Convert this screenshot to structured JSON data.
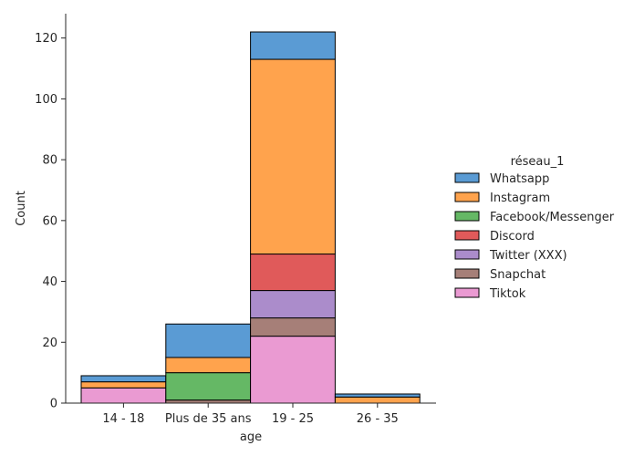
{
  "chart_data": {
    "type": "bar",
    "stacked": true,
    "xlabel": "age",
    "ylabel": "Count",
    "ylim": [
      0,
      128
    ],
    "yticks": [
      0,
      20,
      40,
      60,
      80,
      100,
      120
    ],
    "categories": [
      "14 - 18",
      "Plus de 35 ans",
      "19 - 25",
      "26 - 35"
    ],
    "legend": {
      "title": "réseau_1",
      "placement": "right"
    },
    "series": [
      {
        "name": "Whatsapp",
        "color": "#5a9bd4",
        "values": [
          2,
          11,
          9,
          1
        ]
      },
      {
        "name": "Instagram",
        "color": "#ffa34d",
        "values": [
          2,
          5,
          64,
          2
        ]
      },
      {
        "name": "Facebook/Messenger",
        "color": "#65b865",
        "values": [
          0,
          9,
          0,
          0
        ]
      },
      {
        "name": "Discord",
        "color": "#e05a5a",
        "values": [
          0,
          0,
          12,
          0
        ]
      },
      {
        "name": "Twitter (XXX)",
        "color": "#ab8ccb",
        "values": [
          0,
          0,
          9,
          0
        ]
      },
      {
        "name": "Snapchat",
        "color": "#a67f78",
        "values": [
          0,
          1,
          6,
          0
        ]
      },
      {
        "name": "Tiktok",
        "color": "#ea9ad2",
        "values": [
          5,
          0,
          22,
          0
        ]
      }
    ]
  }
}
